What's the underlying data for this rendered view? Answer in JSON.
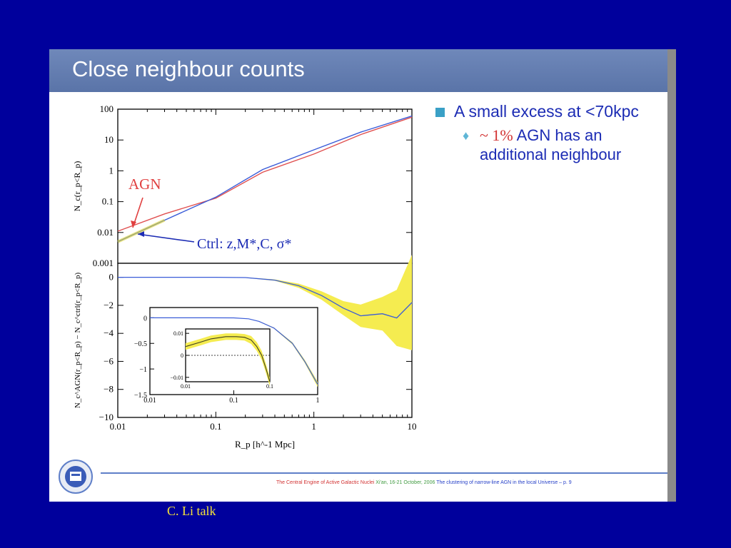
{
  "slide": {
    "title": "Close neighbour counts",
    "bullet_main": "A small excess at <70kpc",
    "bullet_sub_pct": "~ 1%",
    "bullet_sub_line1": " AGN has an",
    "bullet_sub_line2": "additional neighbour",
    "footer_red": "The Central Engine of Active Galactic Nuclei",
    "footer_green": " Xi'an, 16-21 October, 2006",
    "footer_blue": " The clustering of narrow-line AGN in the local Universe – p. 9",
    "caption": "C. Li talk"
  },
  "chart_data": [
    {
      "type": "line",
      "panel": "top",
      "ylabel": "N_c(r_p<R_p)",
      "yscale": "log",
      "xscale": "log",
      "ylim": [
        0.001,
        100
      ],
      "xlim": [
        0.01,
        10
      ],
      "yticks": [
        "0.001",
        "0.01",
        "0.1",
        "1",
        "10",
        "100"
      ],
      "series": [
        {
          "name": "AGN",
          "color": "#e05050",
          "x": [
            0.01,
            0.03,
            0.1,
            0.3,
            1,
            3,
            10
          ],
          "y": [
            0.011,
            0.04,
            0.13,
            0.9,
            3.5,
            15,
            55
          ]
        },
        {
          "name": "Ctrl: z, M*, C, σ*",
          "color": "#3a5cd8",
          "x": [
            0.01,
            0.03,
            0.1,
            0.3,
            1,
            3,
            10
          ],
          "y": [
            0.005,
            0.025,
            0.14,
            1.1,
            4.8,
            18,
            60
          ]
        }
      ],
      "annotations": [
        "AGN",
        "Ctrl: z,M*,C, σ*"
      ]
    },
    {
      "type": "line",
      "panel": "bottom",
      "xlabel": "R_p [h^-1 Mpc]",
      "ylabel": "N_c^AGN(r_p<R_p) − N_c^ctrl(r_p<R_p)",
      "xscale": "log",
      "xlim": [
        0.01,
        10
      ],
      "ylim": [
        -10,
        1
      ],
      "xticks": [
        "0.01",
        "0.1",
        "1",
        "10"
      ],
      "yticks": [
        "0",
        "−2",
        "−4",
        "−6",
        "−8",
        "−10"
      ],
      "series": [
        {
          "color": "#3a5cd8",
          "x": [
            0.01,
            0.1,
            0.2,
            0.4,
            0.7,
            1.2,
            2,
            3,
            5,
            7,
            10
          ],
          "y": [
            0.0,
            0.0,
            -0.02,
            -0.2,
            -0.6,
            -1.3,
            -2.2,
            -2.75,
            -2.6,
            -2.9,
            -1.8
          ],
          "band": [
            0,
            0,
            0.02,
            0.05,
            0.15,
            0.3,
            0.5,
            0.8,
            1.2,
            2.0,
            3.4
          ]
        }
      ]
    },
    {
      "type": "line",
      "panel": "inset",
      "xscale": "log",
      "xlim": [
        0.01,
        1
      ],
      "ylim": [
        -1.5,
        0.2
      ],
      "xticks": [
        "0.01",
        "0.1",
        "1"
      ],
      "yticks": [
        "0",
        "−0.5",
        "−1",
        "−1.5"
      ],
      "series": [
        {
          "color": "#3a5cd8",
          "x": [
            0.01,
            0.05,
            0.1,
            0.15,
            0.2,
            0.3,
            0.5,
            0.7,
            1
          ],
          "y": [
            0.0,
            0.0,
            -0.002,
            -0.02,
            -0.07,
            -0.2,
            -0.5,
            -0.85,
            -1.3
          ],
          "band": [
            0,
            0,
            0.002,
            0.003,
            0.005,
            0.01,
            0.02,
            0.03,
            0.05
          ]
        }
      ]
    },
    {
      "type": "line",
      "panel": "inner-inset",
      "xscale": "log",
      "xlim": [
        0.01,
        0.1
      ],
      "ylim": [
        -0.012,
        0.012
      ],
      "xticks": [
        "0.01",
        "0.1"
      ],
      "yticks": [
        "0.01",
        "0",
        "−0.01"
      ],
      "series": [
        {
          "color": "#404020",
          "x": [
            0.01,
            0.015,
            0.02,
            0.03,
            0.04,
            0.05,
            0.06,
            0.07,
            0.08,
            0.09,
            0.1
          ],
          "y": [
            0.004,
            0.006,
            0.0075,
            0.0085,
            0.0085,
            0.0082,
            0.007,
            0.004,
            0.0,
            -0.006,
            -0.012
          ],
          "band": [
            0.0015,
            0.0015,
            0.0015,
            0.0015,
            0.0015,
            0.0015,
            0.0018,
            0.002,
            0.002,
            0.002,
            0.002
          ]
        }
      ]
    }
  ]
}
